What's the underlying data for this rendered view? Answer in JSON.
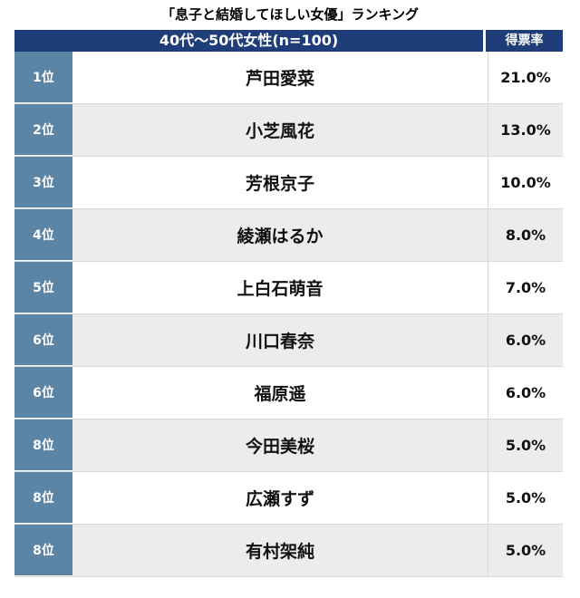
{
  "title": "「息子と結婚してほしい女優」ランキング",
  "header": {
    "group_label": "40代〜50代女性(n=100)",
    "rate_label": "得票率"
  },
  "chart_data": {
    "type": "table",
    "title": "「息子と結婚してほしい女優」ランキング",
    "columns": [
      "",
      "40代〜50代女性(n=100)",
      "得票率"
    ],
    "rows": [
      {
        "rank": "1位",
        "name": "芦田愛菜",
        "rate": "21.0%"
      },
      {
        "rank": "2位",
        "name": "小芝風花",
        "rate": "13.0%"
      },
      {
        "rank": "3位",
        "name": "芳根京子",
        "rate": "10.0%"
      },
      {
        "rank": "4位",
        "name": "綾瀬はるか",
        "rate": "8.0%"
      },
      {
        "rank": "5位",
        "name": "上白石萌音",
        "rate": "7.0%"
      },
      {
        "rank": "6位",
        "name": "川口春奈",
        "rate": "6.0%"
      },
      {
        "rank": "6位",
        "name": "福原遥",
        "rate": "6.0%"
      },
      {
        "rank": "8位",
        "name": "今田美桜",
        "rate": "5.0%"
      },
      {
        "rank": "8位",
        "name": "広瀬すず",
        "rate": "5.0%"
      },
      {
        "rank": "8位",
        "name": "有村架純",
        "rate": "5.0%"
      }
    ]
  },
  "colors": {
    "header_bg": "#1f3d78",
    "rank_bg": "#5b84a5",
    "shade_row": "#ececec"
  }
}
